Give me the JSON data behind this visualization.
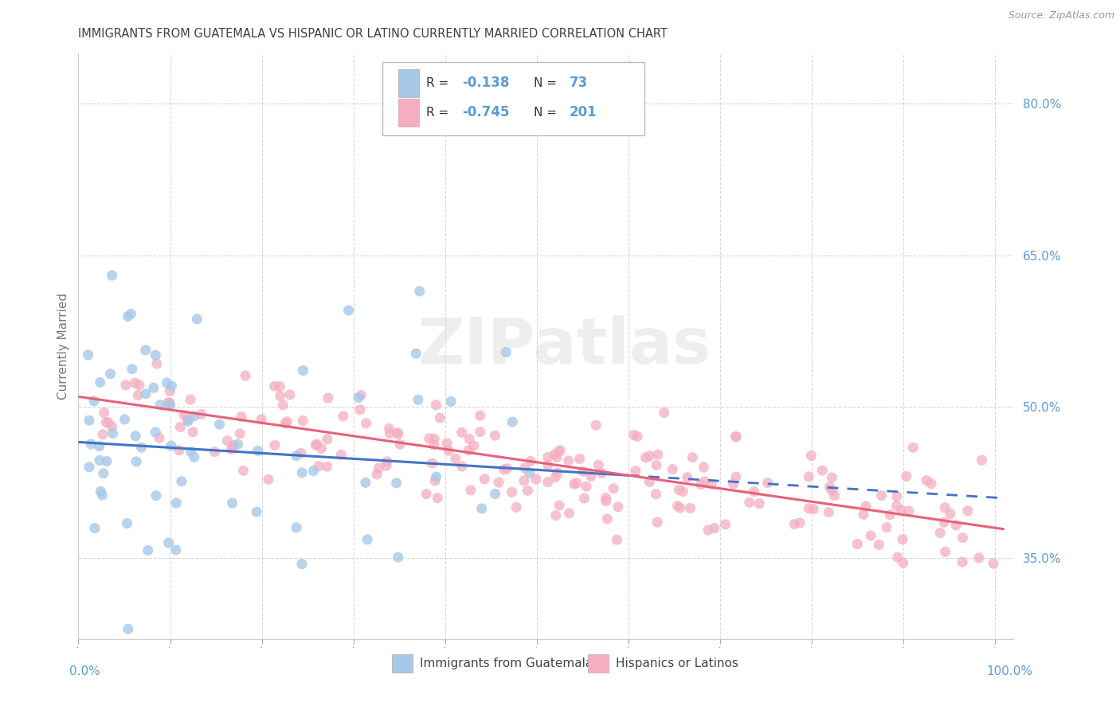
{
  "title": "IMMIGRANTS FROM GUATEMALA VS HISPANIC OR LATINO CURRENTLY MARRIED CORRELATION CHART",
  "source": "Source: ZipAtlas.com",
  "ylabel": "Currently Married",
  "y_tick_vals": [
    0.35,
    0.5,
    0.65,
    0.8
  ],
  "x_ticks": [
    0.0,
    0.1,
    0.2,
    0.3,
    0.4,
    0.5,
    0.6,
    0.7,
    0.8,
    0.9,
    1.0
  ],
  "xlim": [
    0.0,
    1.02
  ],
  "ylim": [
    0.27,
    0.85
  ],
  "watermark": "ZIPatlas",
  "blue_color": "#a8c8e8",
  "pink_color": "#f4aec0",
  "blue_line_color": "#4472c4",
  "pink_line_color": "#e8607a",
  "axis_label_color": "#5b9bd5",
  "title_color": "#404040",
  "grid_color": "#d8d8d8",
  "background_color": "#ffffff",
  "legend_label1": "Immigrants from Guatemala",
  "legend_label2": "Hispanics or Latinos",
  "blue_r": "-0.138",
  "blue_n": "73",
  "pink_r": "-0.745",
  "pink_n": "201",
  "blue_intercept": 0.465,
  "blue_slope": -0.055,
  "pink_intercept": 0.51,
  "pink_slope": -0.13
}
